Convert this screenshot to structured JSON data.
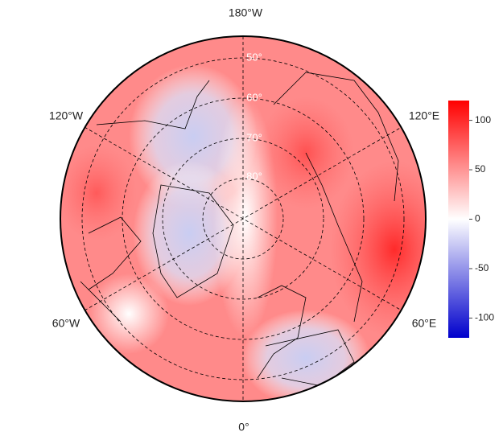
{
  "map": {
    "lon_labels": [
      "180°W",
      "120°W",
      "120°E",
      "60°W",
      "60°E",
      "0°"
    ],
    "lat_labels": [
      "50°",
      "60°",
      "70°",
      "80°"
    ],
    "colorbar": {
      "lim": [
        -120,
        120
      ],
      "ticks": [
        100,
        50,
        0,
        -50,
        -100
      ],
      "colors": [
        "#0000cc",
        "#ffffff",
        "#ff0000"
      ]
    }
  }
}
